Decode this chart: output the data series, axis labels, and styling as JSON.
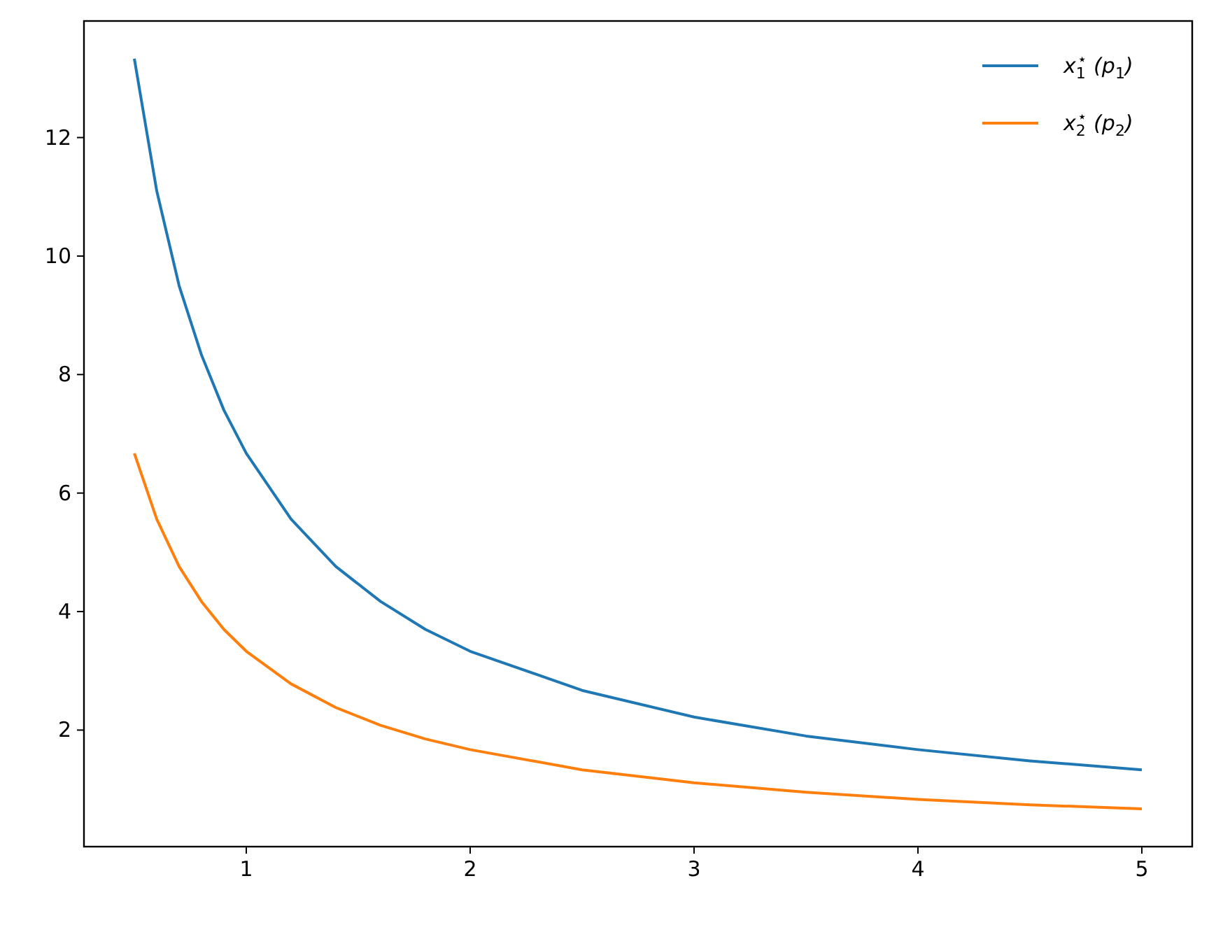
{
  "chart_data": {
    "type": "line",
    "x": [
      0.5,
      0.6,
      0.7,
      0.8,
      0.9,
      1,
      1.2,
      1.4,
      1.6,
      1.8,
      2,
      2.5,
      3,
      3.5,
      4,
      4.5,
      5
    ],
    "series": [
      {
        "name": "x$_{1}$$^{⋆}$ (p$_{1}$)",
        "color": "#1f77b4",
        "values": [
          13.33,
          11.1,
          9.5,
          8.33,
          7.4,
          6.67,
          5.56,
          4.76,
          4.17,
          3.7,
          3.33,
          2.67,
          2.22,
          1.9,
          1.67,
          1.48,
          1.33
        ]
      },
      {
        "name": "x$_{2}$$^{⋆}$ (p$_{2}$)",
        "color": "#ff7f0e",
        "values": [
          6.67,
          5.56,
          4.76,
          4.17,
          3.7,
          3.33,
          2.78,
          2.38,
          2.08,
          1.85,
          1.67,
          1.33,
          1.11,
          0.95,
          0.83,
          0.74,
          0.67
        ]
      }
    ],
    "xlim": [
      0.275,
      5.225
    ],
    "ylim": [
      0.033,
      13.967
    ],
    "xticks": [
      1,
      2,
      3,
      4,
      5
    ],
    "yticks": [
      2,
      4,
      6,
      8,
      10,
      12
    ],
    "grid": false,
    "legend": "top right",
    "marker": "none",
    "line_style": "solid"
  }
}
